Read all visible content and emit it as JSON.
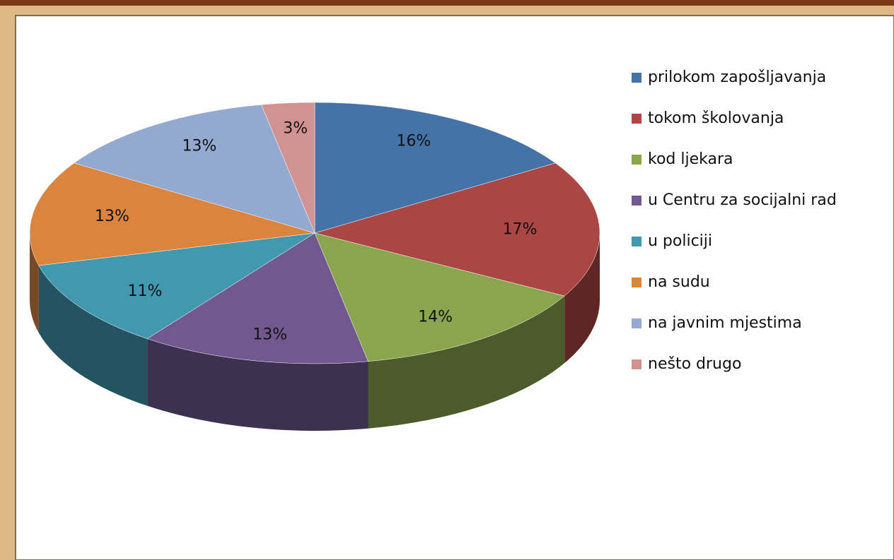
{
  "chart_data": {
    "type": "pie3d",
    "categories": [
      "prilokom zapošljavanja",
      "tokom školovanja",
      "kod ljekara",
      "u Centru za socijalni rad",
      "u policiji",
      "na sudu",
      "na javnim mjestima",
      "nešto drugo"
    ],
    "values": [
      16,
      17,
      14,
      13,
      11,
      13,
      13,
      3
    ],
    "value_labels": [
      "16%",
      "17%",
      "14%",
      "13%",
      "11%",
      "13%",
      "13%",
      "3%"
    ],
    "colors": [
      "#4572a7",
      "#aa4643",
      "#89a54e",
      "#71588f",
      "#4198af",
      "#db843d",
      "#93a9cf",
      "#d19392"
    ],
    "legend": "right"
  }
}
